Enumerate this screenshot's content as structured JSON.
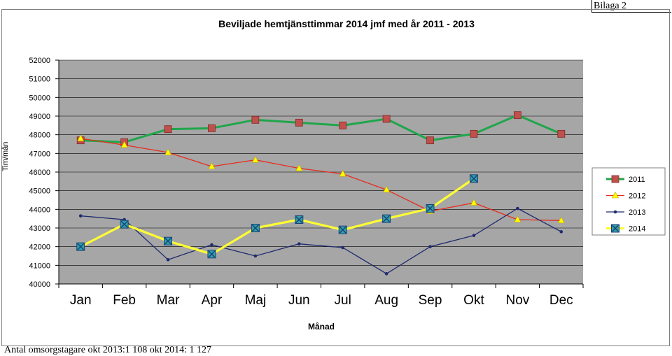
{
  "header": {
    "bilaga": "Bilaga 2"
  },
  "footnote": "Antal omsorgstagare okt 2013:1 108  okt 2014: 1 127",
  "chart_data": {
    "type": "line",
    "title": "Beviljade hemtjänsttimmar 2014 jmf med år 2011 - 2013",
    "xlabel": "Månad",
    "ylabel": "Tim/mån",
    "categories": [
      "Jan",
      "Feb",
      "Mar",
      "Apr",
      "Maj",
      "Jun",
      "Jul",
      "Aug",
      "Sep",
      "Okt",
      "Nov",
      "Dec"
    ],
    "ylim": [
      40000,
      52000
    ],
    "yticks": [
      40000,
      41000,
      42000,
      43000,
      44000,
      45000,
      46000,
      47000,
      48000,
      49000,
      50000,
      51000,
      52000
    ],
    "grid": true,
    "legend_position": "right",
    "plot_background": "#a6a6a6",
    "series": [
      {
        "name": "2011",
        "color": "#1fa64a",
        "marker": "square-red",
        "values": [
          47700,
          47600,
          48300,
          48350,
          48800,
          48650,
          48500,
          48850,
          47700,
          48050,
          49050,
          48050
        ]
      },
      {
        "name": "2012",
        "color": "#e82c1c",
        "marker": "triangle-yellow",
        "values": [
          47800,
          47450,
          47050,
          46300,
          46650,
          46200,
          45900,
          45050,
          43900,
          44350,
          43450,
          43400
        ]
      },
      {
        "name": "2013",
        "color": "#1f2a6e",
        "marker": "dot",
        "values": [
          43650,
          43450,
          41300,
          42100,
          41500,
          42150,
          41950,
          40550,
          42000,
          42600,
          44050,
          42800
        ]
      },
      {
        "name": "2014",
        "color": "#ffff33",
        "marker": "box-x",
        "values": [
          42000,
          43200,
          42300,
          41600,
          43000,
          43450,
          42900,
          43500,
          44050,
          45650,
          null,
          null
        ]
      }
    ]
  }
}
